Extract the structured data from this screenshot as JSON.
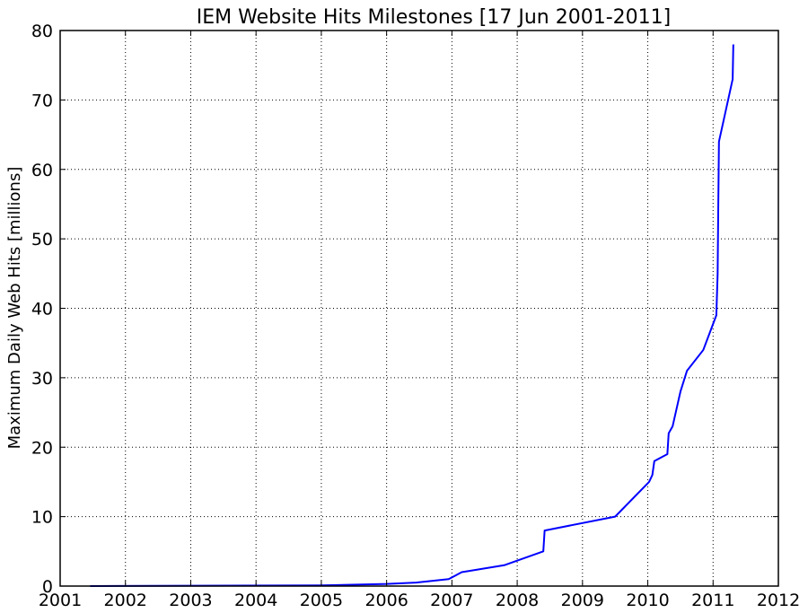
{
  "chart_data": {
    "type": "line",
    "title": "IEM Website Hits Milestones [17 Jun 2001-2011]",
    "xlabel": "",
    "ylabel": "Maximum Daily Web Hits [millions]",
    "xlim": [
      2001,
      2012
    ],
    "ylim": [
      0,
      80
    ],
    "x_ticks": [
      2001,
      2002,
      2003,
      2004,
      2005,
      2006,
      2007,
      2008,
      2009,
      2010,
      2011,
      2012
    ],
    "y_ticks": [
      0,
      10,
      20,
      30,
      40,
      50,
      60,
      70,
      80
    ],
    "grid": true,
    "line_color": "#0000ff",
    "series": [
      {
        "x": [
          2001.46,
          2003.0,
          2005.0,
          2006.0,
          2006.45,
          2006.95,
          2007.15,
          2007.8,
          2008.4,
          2008.42,
          2009.5,
          2010.02,
          2010.07,
          2010.1,
          2010.3,
          2010.32,
          2010.38,
          2010.5,
          2010.6,
          2010.85,
          2011.05,
          2011.07,
          2011.08,
          2011.09,
          2011.3,
          2011.31
        ],
        "y": [
          0.0,
          0.05,
          0.1,
          0.3,
          0.5,
          1.0,
          2.0,
          3.0,
          5.0,
          8.0,
          10.0,
          15.0,
          16.0,
          18.0,
          19.0,
          22.0,
          23.0,
          28.0,
          31.0,
          34.0,
          39.0,
          45.0,
          55.0,
          64.0,
          73.0,
          78.0
        ]
      }
    ]
  }
}
